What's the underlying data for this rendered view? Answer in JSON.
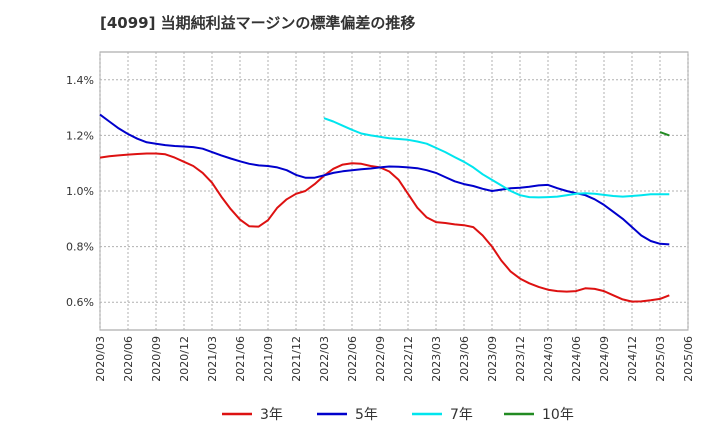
{
  "chart_data": {
    "type": "line",
    "title": "[4099]  当期純利益マージンの標準偏差の推移",
    "xlabel": "",
    "ylabel": "",
    "ylim": [
      0.5,
      1.5
    ],
    "yticks": [
      0.6,
      0.8,
      1.0,
      1.2,
      1.4
    ],
    "ytick_labels": [
      "0.6%",
      "0.8%",
      "1.0%",
      "1.2%",
      "1.4%"
    ],
    "x_start": "2020/03",
    "x_end": "2025/06",
    "xtick_labels": [
      "2020/03",
      "2020/06",
      "2020/09",
      "2020/12",
      "2021/03",
      "2021/06",
      "2021/09",
      "2021/12",
      "2022/03",
      "2022/06",
      "2022/09",
      "2022/12",
      "2023/03",
      "2023/06",
      "2023/09",
      "2023/12",
      "2024/03",
      "2024/06",
      "2024/09",
      "2024/12",
      "2025/03",
      "2025/06"
    ],
    "grid": true,
    "legend_position": "bottom",
    "series": [
      {
        "name": "3年",
        "color": "#dd1111",
        "points": [
          [
            "2020/03",
            1.12
          ],
          [
            "2020/04",
            1.125
          ],
          [
            "2020/05",
            1.128
          ],
          [
            "2020/06",
            1.131
          ],
          [
            "2020/07",
            1.133
          ],
          [
            "2020/08",
            1.135
          ],
          [
            "2020/09",
            1.135
          ],
          [
            "2020/10",
            1.132
          ],
          [
            "2020/11",
            1.12
          ],
          [
            "2020/12",
            1.105
          ],
          [
            "2021/01",
            1.09
          ],
          [
            "2021/02",
            1.065
          ],
          [
            "2021/03",
            1.03
          ],
          [
            "2021/04",
            0.98
          ],
          [
            "2021/05",
            0.935
          ],
          [
            "2021/06",
            0.897
          ],
          [
            "2021/07",
            0.873
          ],
          [
            "2021/08",
            0.872
          ],
          [
            "2021/09",
            0.895
          ],
          [
            "2021/10",
            0.94
          ],
          [
            "2021/11",
            0.97
          ],
          [
            "2021/12",
            0.99
          ],
          [
            "2022/01",
            1.0
          ],
          [
            "2022/02",
            1.025
          ],
          [
            "2022/03",
            1.055
          ],
          [
            "2022/04",
            1.08
          ],
          [
            "2022/05",
            1.095
          ],
          [
            "2022/06",
            1.1
          ],
          [
            "2022/07",
            1.098
          ],
          [
            "2022/08",
            1.09
          ],
          [
            "2022/09",
            1.085
          ],
          [
            "2022/10",
            1.07
          ],
          [
            "2022/11",
            1.04
          ],
          [
            "2022/12",
            0.99
          ],
          [
            "2023/01",
            0.94
          ],
          [
            "2023/02",
            0.905
          ],
          [
            "2023/03",
            0.888
          ],
          [
            "2023/04",
            0.885
          ],
          [
            "2023/05",
            0.88
          ],
          [
            "2023/06",
            0.877
          ],
          [
            "2023/07",
            0.87
          ],
          [
            "2023/08",
            0.84
          ],
          [
            "2023/09",
            0.8
          ],
          [
            "2023/10",
            0.75
          ],
          [
            "2023/11",
            0.71
          ],
          [
            "2023/12",
            0.685
          ],
          [
            "2024/01",
            0.668
          ],
          [
            "2024/02",
            0.655
          ],
          [
            "2024/03",
            0.645
          ],
          [
            "2024/04",
            0.64
          ],
          [
            "2024/05",
            0.638
          ],
          [
            "2024/06",
            0.64
          ],
          [
            "2024/07",
            0.65
          ],
          [
            "2024/08",
            0.648
          ],
          [
            "2024/09",
            0.64
          ],
          [
            "2024/10",
            0.625
          ],
          [
            "2024/11",
            0.61
          ],
          [
            "2024/12",
            0.602
          ],
          [
            "2025/01",
            0.603
          ],
          [
            "2025/02",
            0.607
          ],
          [
            "2025/03",
            0.612
          ],
          [
            "2025/04",
            0.625
          ]
        ]
      },
      {
        "name": "5年",
        "color": "#0000cc",
        "points": [
          [
            "2020/03",
            1.275
          ],
          [
            "2020/04",
            1.25
          ],
          [
            "2020/05",
            1.225
          ],
          [
            "2020/06",
            1.205
          ],
          [
            "2020/07",
            1.188
          ],
          [
            "2020/08",
            1.175
          ],
          [
            "2020/09",
            1.17
          ],
          [
            "2020/10",
            1.165
          ],
          [
            "2020/11",
            1.162
          ],
          [
            "2020/12",
            1.16
          ],
          [
            "2021/01",
            1.158
          ],
          [
            "2021/02",
            1.152
          ],
          [
            "2021/03",
            1.14
          ],
          [
            "2021/04",
            1.128
          ],
          [
            "2021/05",
            1.117
          ],
          [
            "2021/06",
            1.107
          ],
          [
            "2021/07",
            1.098
          ],
          [
            "2021/08",
            1.092
          ],
          [
            "2021/09",
            1.09
          ],
          [
            "2021/10",
            1.085
          ],
          [
            "2021/11",
            1.075
          ],
          [
            "2021/12",
            1.058
          ],
          [
            "2022/01",
            1.048
          ],
          [
            "2022/02",
            1.048
          ],
          [
            "2022/03",
            1.056
          ],
          [
            "2022/04",
            1.065
          ],
          [
            "2022/05",
            1.071
          ],
          [
            "2022/06",
            1.075
          ],
          [
            "2022/07",
            1.078
          ],
          [
            "2022/08",
            1.081
          ],
          [
            "2022/09",
            1.085
          ],
          [
            "2022/10",
            1.088
          ],
          [
            "2022/11",
            1.087
          ],
          [
            "2022/12",
            1.085
          ],
          [
            "2023/01",
            1.082
          ],
          [
            "2023/02",
            1.075
          ],
          [
            "2023/03",
            1.065
          ],
          [
            "2023/04",
            1.05
          ],
          [
            "2023/05",
            1.035
          ],
          [
            "2023/06",
            1.025
          ],
          [
            "2023/07",
            1.018
          ],
          [
            "2023/08",
            1.008
          ],
          [
            "2023/09",
            1.0
          ],
          [
            "2023/10",
            1.005
          ],
          [
            "2023/11",
            1.01
          ],
          [
            "2023/12",
            1.012
          ],
          [
            "2024/01",
            1.015
          ],
          [
            "2024/02",
            1.02
          ],
          [
            "2024/03",
            1.022
          ],
          [
            "2024/04",
            1.01
          ],
          [
            "2024/05",
            1.0
          ],
          [
            "2024/06",
            0.992
          ],
          [
            "2024/07",
            0.985
          ],
          [
            "2024/08",
            0.97
          ],
          [
            "2024/09",
            0.95
          ],
          [
            "2024/10",
            0.925
          ],
          [
            "2024/11",
            0.9
          ],
          [
            "2024/12",
            0.87
          ],
          [
            "2025/01",
            0.84
          ],
          [
            "2025/02",
            0.82
          ],
          [
            "2025/03",
            0.81
          ],
          [
            "2025/04",
            0.808
          ]
        ]
      },
      {
        "name": "7年",
        "color": "#00e5ee",
        "points": [
          [
            "2022/03",
            1.262
          ],
          [
            "2022/04",
            1.25
          ],
          [
            "2022/05",
            1.235
          ],
          [
            "2022/06",
            1.22
          ],
          [
            "2022/07",
            1.207
          ],
          [
            "2022/08",
            1.2
          ],
          [
            "2022/09",
            1.195
          ],
          [
            "2022/10",
            1.19
          ],
          [
            "2022/11",
            1.187
          ],
          [
            "2022/12",
            1.184
          ],
          [
            "2023/01",
            1.178
          ],
          [
            "2023/02",
            1.17
          ],
          [
            "2023/03",
            1.155
          ],
          [
            "2023/04",
            1.14
          ],
          [
            "2023/05",
            1.122
          ],
          [
            "2023/06",
            1.105
          ],
          [
            "2023/07",
            1.085
          ],
          [
            "2023/08",
            1.06
          ],
          [
            "2023/09",
            1.04
          ],
          [
            "2023/10",
            1.02
          ],
          [
            "2023/11",
            1.0
          ],
          [
            "2023/12",
            0.985
          ],
          [
            "2024/01",
            0.978
          ],
          [
            "2024/02",
            0.977
          ],
          [
            "2024/03",
            0.978
          ],
          [
            "2024/04",
            0.98
          ],
          [
            "2024/05",
            0.985
          ],
          [
            "2024/06",
            0.99
          ],
          [
            "2024/07",
            0.992
          ],
          [
            "2024/08",
            0.99
          ],
          [
            "2024/09",
            0.986
          ],
          [
            "2024/10",
            0.982
          ],
          [
            "2024/11",
            0.98
          ],
          [
            "2024/12",
            0.982
          ],
          [
            "2025/01",
            0.985
          ],
          [
            "2025/02",
            0.988
          ],
          [
            "2025/03",
            0.988
          ],
          [
            "2025/04",
            0.988
          ]
        ]
      },
      {
        "name": "10年",
        "color": "#228b22",
        "points": [
          [
            "2025/03",
            1.212
          ],
          [
            "2025/04",
            1.2
          ]
        ]
      }
    ]
  }
}
